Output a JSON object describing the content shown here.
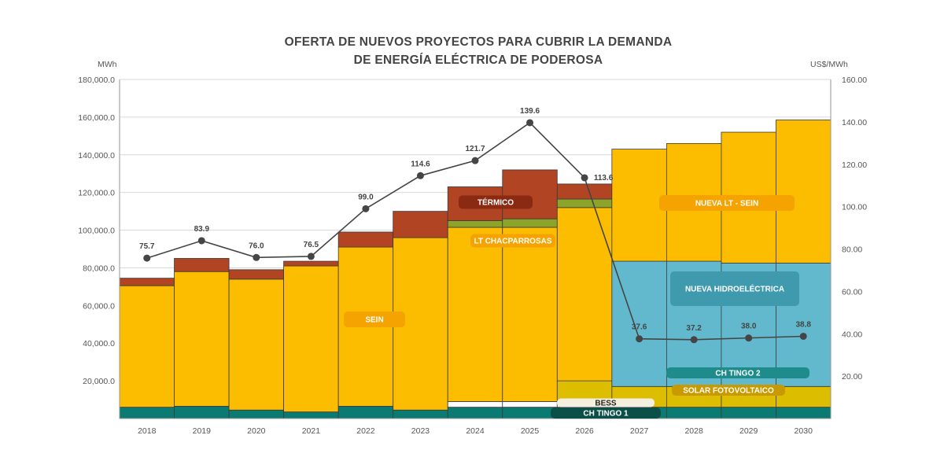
{
  "chart_data": {
    "type": "bar",
    "title_line1": "OFERTA DE NUEVOS PROYECTOS PARA CUBRIR LA DEMANDA",
    "title_line2": "DE ENERGÍA ELÉCTRICA DE PODEROSA",
    "ylabel_left": "MWh",
    "ylabel_right": "US$/MWh",
    "ylim_left": [
      0,
      180000
    ],
    "ylim_right": [
      0,
      160
    ],
    "yticks_left": [
      "20,000.0",
      "40,000.0",
      "60,000.0",
      "80,000.0",
      "100,000.0",
      "120,000.0",
      "140,000.0",
      "160,000.0",
      "180,000.0"
    ],
    "yticks_right": [
      "20.00",
      "40.00",
      "60.00",
      "80.00",
      "100.00",
      "120.00",
      "140.00",
      "160.00"
    ],
    "grid": true,
    "categories": [
      "2018",
      "2019",
      "2020",
      "2021",
      "2022",
      "2023",
      "2024",
      "2025",
      "2026",
      "2027",
      "2028",
      "2029",
      "2030"
    ],
    "series": [
      {
        "name": "CH TINGO 1",
        "color": "#0b7a72",
        "values": [
          6000,
          6500,
          4500,
          3500,
          6500,
          4500,
          6000,
          6000,
          6000,
          6000,
          6000,
          6000,
          6000
        ]
      },
      {
        "name": "BESS",
        "color": "#ffffff",
        "values": [
          0,
          0,
          0,
          0,
          0,
          0,
          3000,
          3000,
          3000,
          0,
          0,
          0,
          0
        ]
      },
      {
        "name": "SOLAR FOTOVOLTAICO",
        "color": "#ddbd00",
        "values": [
          0,
          0,
          0,
          0,
          0,
          0,
          0,
          0,
          11000,
          11000,
          11000,
          11000,
          11000
        ]
      },
      {
        "name": "CH TINGO 2",
        "color": "#5fb8cb",
        "values": [
          0,
          0,
          0,
          0,
          0,
          0,
          0,
          0,
          0,
          0,
          0,
          0,
          0
        ]
      },
      {
        "name": "NUEVA HIDROELÉCTRICA",
        "color": "#62b9cd",
        "values": [
          0,
          0,
          0,
          0,
          0,
          0,
          0,
          0,
          0,
          66500,
          66500,
          65500,
          65500
        ]
      },
      {
        "name": "SEIN",
        "color": "#fcbd00",
        "values": [
          64500,
          71500,
          69500,
          77500,
          84500,
          91500,
          92500,
          92500,
          92000,
          0,
          0,
          0,
          0
        ]
      },
      {
        "name": "LT CHACPARROSAS",
        "color": "#8da42a",
        "values": [
          0,
          0,
          0,
          0,
          0,
          0,
          3500,
          4500,
          4500,
          0,
          0,
          0,
          0
        ]
      },
      {
        "name": "TÉRMICO",
        "color": "#b04423",
        "values": [
          4000,
          7000,
          5000,
          2500,
          8000,
          14000,
          18000,
          26000,
          8000,
          0,
          0,
          0,
          0
        ]
      },
      {
        "name": "NUEVA LT - SEIN",
        "color": "#fcbd00",
        "values": [
          0,
          0,
          0,
          0,
          0,
          0,
          0,
          0,
          0,
          59500,
          62500,
          69500,
          76000
        ]
      }
    ],
    "line": {
      "values": [
        75.7,
        83.9,
        76.0,
        76.5,
        99.0,
        114.6,
        121.7,
        139.6,
        113.6,
        37.6,
        37.2,
        38.0,
        38.8
      ],
      "labels": [
        "75.7",
        "83.9",
        "76.0",
        "76.5",
        "99.0",
        "114.6",
        "121.7",
        "139.6",
        "113.6",
        "37.6",
        "37.2",
        "38.0",
        "38.8"
      ],
      "color": "#454545"
    },
    "annotations": [
      {
        "text": "TÉRMICO",
        "color": "#8a2a12",
        "text_color": "#ffffff"
      },
      {
        "text": "LT CHACPARROSAS",
        "color": "#f5a300",
        "text_color": "#ffffff"
      },
      {
        "text": "SEIN",
        "color": "#f5a300",
        "text_color": "#ffffff"
      },
      {
        "text": "NUEVA LT - SEIN",
        "color": "#f5a300",
        "text_color": "#ffffff"
      },
      {
        "text": "NUEVA HIDROELÉCTRICA",
        "color": "#3f9aae",
        "text_color": "#ffffff"
      },
      {
        "text": "CH TINGO 2",
        "color": "#1f8c8c",
        "text_color": "#ffffff"
      },
      {
        "text": "SOLAR FOTOVOLTAICO",
        "color": "#c99a00",
        "text_color": "#ffffff"
      },
      {
        "text": "BESS",
        "color": "#f4f0e0",
        "text_color": "#222222"
      },
      {
        "text": "CH TINGO 1",
        "color": "#0c4f49",
        "text_color": "#ffffff"
      }
    ]
  }
}
